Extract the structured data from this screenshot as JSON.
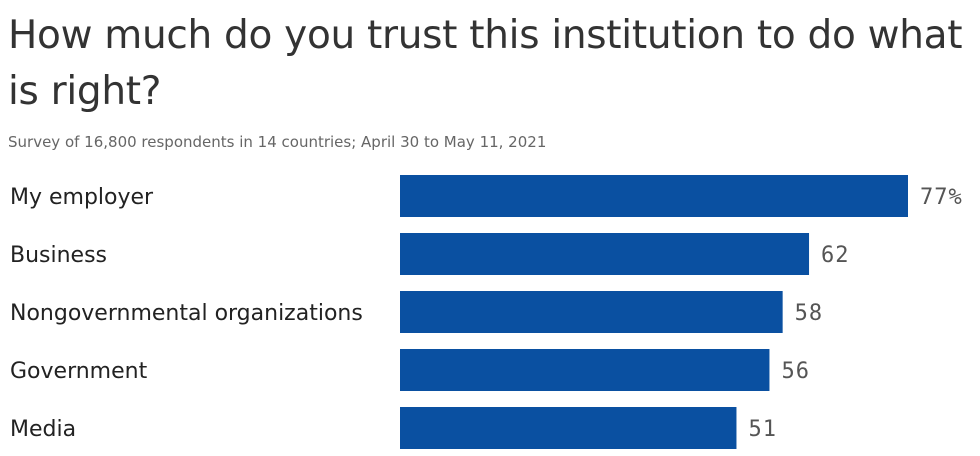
{
  "chart_data": {
    "type": "bar",
    "orientation": "horizontal",
    "title": "How much do you trust this institution to do what is right?",
    "subtitle": "Survey of 16,800 respondents in 14 countries; April 30 to May 11, 2021",
    "categories": [
      "My employer",
      "Business",
      "Nongovernmental organizations",
      "Government",
      "Media"
    ],
    "values": [
      77,
      62,
      58,
      56,
      51
    ],
    "value_labels": [
      "77%",
      "62",
      "58",
      "56",
      "51"
    ],
    "bar_color": "#0a50a1",
    "grid": false,
    "legend": "none"
  }
}
